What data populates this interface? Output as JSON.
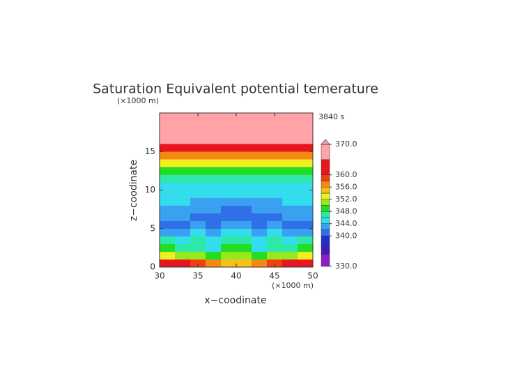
{
  "chart_data": {
    "type": "contour",
    "title": "Saturation Equivalent potential temerature",
    "xlabel": "x−coodinate",
    "ylabel": "z−coodinate",
    "x_unit": "(×1000 m)",
    "y_unit": "(×1000 m)",
    "annotation": "3840 s",
    "xlim": [
      30,
      50
    ],
    "ylim": [
      0,
      20
    ],
    "xticks": [
      30,
      35,
      40,
      45,
      50
    ],
    "yticks": [
      0,
      5,
      10,
      15
    ],
    "x": [
      31,
      33,
      35,
      37,
      39,
      41,
      43,
      45,
      47,
      49
    ],
    "y": [
      0.5,
      1.5,
      2.5,
      3.5,
      4.5,
      5.5,
      6.5,
      7.5,
      8.5,
      9.5,
      10.5,
      11.5,
      12.5,
      13.5,
      14.5,
      15.5,
      16.5,
      17.5,
      18.5,
      19.5
    ],
    "values": [
      [
        362,
        360,
        358,
        356,
        355,
        355,
        356,
        358,
        360,
        362
      ],
      [
        352,
        350,
        351,
        349,
        350,
        350,
        349,
        351,
        350,
        352
      ],
      [
        348,
        346,
        347,
        345,
        348,
        348,
        345,
        347,
        346,
        348
      ],
      [
        346,
        345,
        347,
        344,
        347,
        347,
        344,
        347,
        345,
        346
      ],
      [
        343,
        342,
        344,
        343,
        345,
        345,
        343,
        344,
        342,
        343
      ],
      [
        341,
        341,
        342,
        340,
        343,
        343,
        340,
        342,
        341,
        341
      ],
      [
        342,
        342,
        341,
        341,
        341,
        341,
        341,
        341,
        342,
        342
      ],
      [
        343,
        343,
        342,
        342,
        341,
        341,
        342,
        342,
        343,
        343
      ],
      [
        344,
        344,
        343,
        343,
        342,
        342,
        343,
        343,
        344,
        344
      ],
      [
        345,
        345,
        345,
        344,
        344,
        344,
        344,
        345,
        345,
        345
      ],
      [
        345,
        345,
        345,
        345,
        345,
        345,
        345,
        345,
        345,
        345
      ],
      [
        347,
        347,
        347,
        347,
        347,
        347,
        347,
        347,
        347,
        347
      ],
      [
        349,
        349,
        349,
        349,
        349,
        349,
        349,
        349,
        349,
        349
      ],
      [
        352,
        352,
        352,
        352,
        352,
        352,
        352,
        352,
        352,
        352
      ],
      [
        357,
        357,
        357,
        357,
        357,
        357,
        357,
        357,
        357,
        357
      ],
      [
        362,
        362,
        362,
        362,
        362,
        362,
        362,
        362,
        362,
        362
      ],
      [
        368,
        368,
        368,
        368,
        368,
        368,
        368,
        368,
        368,
        368
      ],
      [
        368,
        368,
        368,
        368,
        368,
        368,
        368,
        368,
        368,
        368
      ],
      [
        368,
        368,
        368,
        368,
        368,
        368,
        368,
        368,
        368,
        368
      ],
      [
        368,
        368,
        368,
        368,
        368,
        368,
        368,
        368,
        368,
        368
      ]
    ],
    "colorbar": {
      "levels": [
        330,
        334,
        337,
        340,
        342,
        344,
        346,
        348,
        350,
        352,
        354,
        356,
        358,
        360,
        365,
        370
      ],
      "colors": [
        "#8a1fc8",
        "#3a1fb0",
        "#1f2fd0",
        "#2f6fe8",
        "#3aa0f0",
        "#33ddee",
        "#2ee8a8",
        "#22dd22",
        "#99e81e",
        "#f0f020",
        "#f5c017",
        "#f58a12",
        "#f04010",
        "#e8141e",
        "#ffa3a8"
      ],
      "ticks": [
        {
          "value": 330,
          "label": "330.0"
        },
        {
          "value": 340,
          "label": "340.0"
        },
        {
          "value": 344,
          "label": "344.0"
        },
        {
          "value": 348,
          "label": "348.0"
        },
        {
          "value": 352,
          "label": "352.0"
        },
        {
          "value": 356,
          "label": "356.0"
        },
        {
          "value": 360,
          "label": "360.0"
        },
        {
          "value": 370,
          "label": "370.0"
        }
      ]
    }
  }
}
